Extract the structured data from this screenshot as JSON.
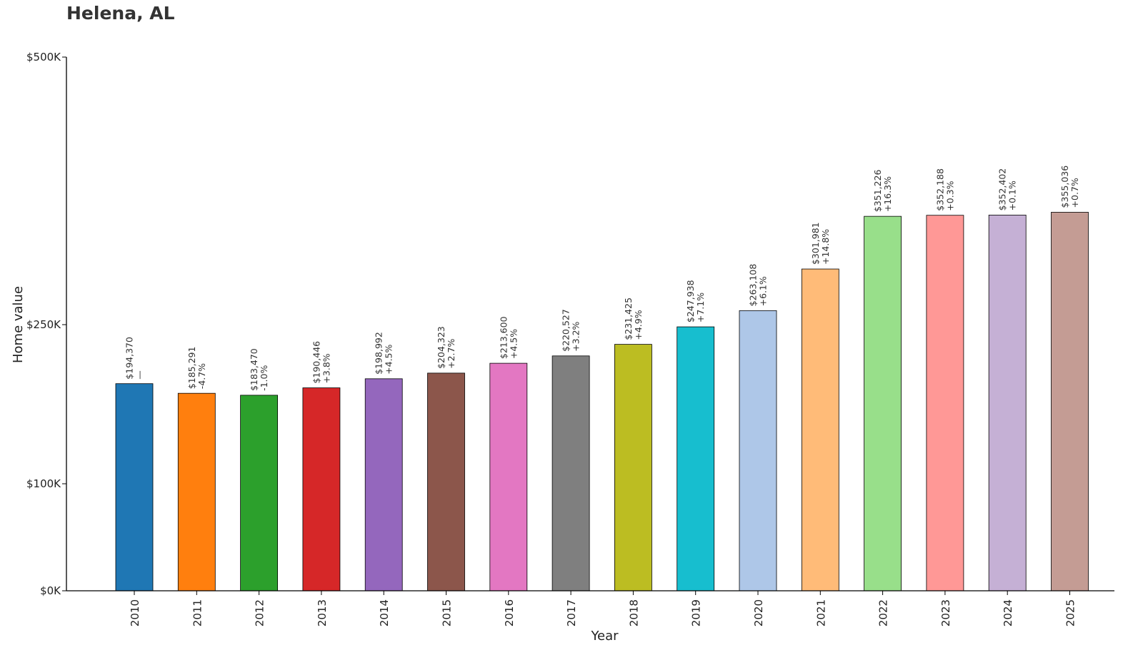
{
  "chart_data": {
    "type": "bar",
    "title": "Helena, AL",
    "xlabel": "Year",
    "ylabel": "Home value",
    "ylim": [
      0,
      500000
    ],
    "y_ticks": [
      {
        "value": 0,
        "label": "$0K"
      },
      {
        "value": 100000,
        "label": "$100K"
      },
      {
        "value": 250000,
        "label": "$250K"
      },
      {
        "value": 500000,
        "label": "$500K"
      }
    ],
    "categories": [
      "2010",
      "2011",
      "2012",
      "2013",
      "2014",
      "2015",
      "2016",
      "2017",
      "2018",
      "2019",
      "2020",
      "2021",
      "2022",
      "2023",
      "2024",
      "2025"
    ],
    "values": [
      194370,
      185291,
      183470,
      190446,
      198992,
      204323,
      213600,
      220527,
      231425,
      247938,
      263108,
      301981,
      351226,
      352188,
      352402,
      355036
    ],
    "value_labels": [
      "$194,370",
      "$185,291",
      "$183,470",
      "$190,446",
      "$198,992",
      "$204,323",
      "$213,600",
      "$220,527",
      "$231,425",
      "$247,938",
      "$263,108",
      "$301,981",
      "$351,226",
      "$352,188",
      "$352,402",
      "$355,036"
    ],
    "change_labels": [
      "—",
      "-4.7%",
      "-1.0%",
      "+3.8%",
      "+4.5%",
      "+2.7%",
      "+4.5%",
      "+3.2%",
      "+4.9%",
      "+7.1%",
      "+6.1%",
      "+14.8%",
      "+16.3%",
      "+0.3%",
      "+0.1%",
      "+0.7%"
    ],
    "colors": [
      "#1f77b4",
      "#ff7f0e",
      "#2ca02c",
      "#d62728",
      "#9467bd",
      "#8c564b",
      "#e377c2",
      "#7f7f7f",
      "#bcbd22",
      "#17becf",
      "#aec7e8",
      "#ffbb78",
      "#98df8a",
      "#ff9896",
      "#c5b0d5",
      "#c49c94"
    ],
    "grid": false,
    "legend": "none"
  }
}
